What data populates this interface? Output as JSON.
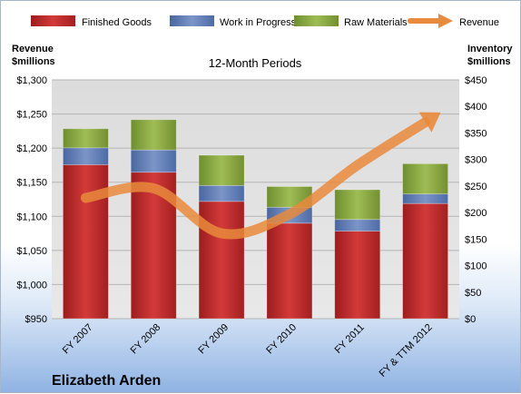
{
  "company": "Elizabeth Arden",
  "chart_data": {
    "type": "bar",
    "stacked": true,
    "title": "12-Month Periods",
    "categories": [
      "FY 2007",
      "FY 2008",
      "FY 2009",
      "FY 2010",
      "FY 2011",
      "FY & TTM 2012"
    ],
    "left_axis": {
      "label_line1": "Revenue",
      "label_line2": "$millions",
      "min": 950,
      "max": 1300,
      "step": 50,
      "ticks": [
        "$950",
        "$1,000",
        "$1,050",
        "$1,100",
        "$1,150",
        "$1,200",
        "$1,250",
        "$1,300"
      ]
    },
    "right_axis": {
      "label_line1": "Inventory",
      "label_line2": "$millions",
      "min": 0,
      "max": 450,
      "step": 50,
      "ticks": [
        "$0",
        "$50",
        "$100",
        "$150",
        "$200",
        "$250",
        "$300",
        "$350",
        "$400",
        "$450"
      ]
    },
    "series": [
      {
        "name": "Finished Goods",
        "axis": "right",
        "color": "#c0292a",
        "values": [
          290,
          276,
          221,
          180,
          165,
          217
        ]
      },
      {
        "name": "Work in Progress",
        "axis": "right",
        "color": "#5878b6",
        "values": [
          32,
          42,
          30,
          30,
          22,
          18
        ]
      },
      {
        "name": "Raw Materials",
        "axis": "right",
        "color": "#86a83c",
        "values": [
          36,
          57,
          57,
          39,
          56,
          57
        ]
      },
      {
        "name": "Revenue",
        "axis": "left",
        "type": "line",
        "color": "#e98a3c",
        "values": [
          1127,
          1141,
          1075,
          1103,
          1175,
          1238
        ]
      }
    ],
    "legend_position": "top",
    "grid": true
  }
}
